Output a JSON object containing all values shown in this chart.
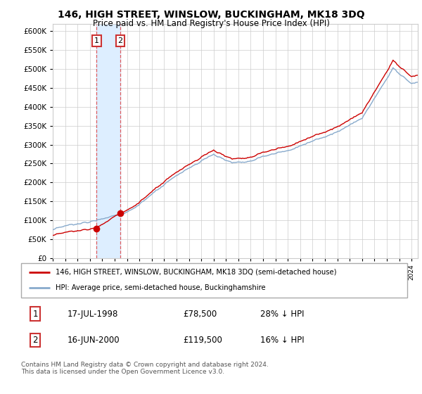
{
  "title": "146, HIGH STREET, WINSLOW, BUCKINGHAM, MK18 3DQ",
  "subtitle": "Price paid vs. HM Land Registry's House Price Index (HPI)",
  "legend_label_red": "146, HIGH STREET, WINSLOW, BUCKINGHAM, MK18 3DQ (semi-detached house)",
  "legend_label_blue": "HPI: Average price, semi-detached house, Buckinghamshire",
  "transaction_1_date": "17-JUL-1998",
  "transaction_1_price": "£78,500",
  "transaction_1_hpi": "28% ↓ HPI",
  "transaction_1_year": 1998.54,
  "transaction_1_value": 78500,
  "transaction_2_date": "16-JUN-2000",
  "transaction_2_price": "£119,500",
  "transaction_2_hpi": "16% ↓ HPI",
  "transaction_2_year": 2000.46,
  "transaction_2_value": 119500,
  "footer": "Contains HM Land Registry data © Crown copyright and database right 2024.\nThis data is licensed under the Open Government Licence v3.0.",
  "red_color": "#cc0000",
  "blue_color": "#88aacc",
  "highlight_color": "#ddeeff",
  "dashed_color": "#dd4444",
  "box_color": "#cc3333",
  "grid_color": "#cccccc",
  "ylim_min": 0,
  "ylim_max": 620000,
  "xlim_min": 1995,
  "xlim_max": 2024.5
}
